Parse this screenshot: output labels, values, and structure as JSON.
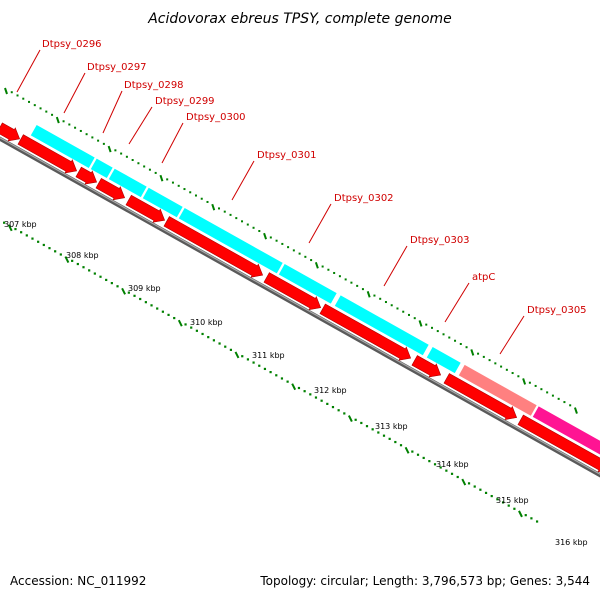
{
  "title": "Acidovorax ebreus TPSY, complete genome",
  "footer": {
    "accession": "Accession: NC_011992",
    "summary": "Topology: circular; Length: 3,796,573 bp; Genes: 3,544"
  },
  "colors": {
    "cds": "#ff0000",
    "cds_outline": "#b00000",
    "gene": "#00ffff",
    "atp_gene": "#ff8080",
    "feature": "#ff1493",
    "backbone": "#808080",
    "tick": "#008000",
    "label": "#d00000"
  },
  "genes": [
    {
      "name": "Dtpsy_0296"
    },
    {
      "name": "Dtpsy_0297"
    },
    {
      "name": "Dtpsy_0298"
    },
    {
      "name": "Dtpsy_0299"
    },
    {
      "name": "Dtpsy_0300"
    },
    {
      "name": "Dtpsy_0301"
    },
    {
      "name": "Dtpsy_0302"
    },
    {
      "name": "Dtpsy_0303"
    },
    {
      "name": "atpC"
    },
    {
      "name": "Dtpsy_0305"
    }
  ],
  "scale_labels": [
    "307 kbp",
    "308 kbp",
    "309 kbp",
    "310 kbp",
    "311 kbp",
    "312 kbp",
    "313 kbp",
    "314 kbp",
    "315 kbp",
    "316 kbp"
  ]
}
